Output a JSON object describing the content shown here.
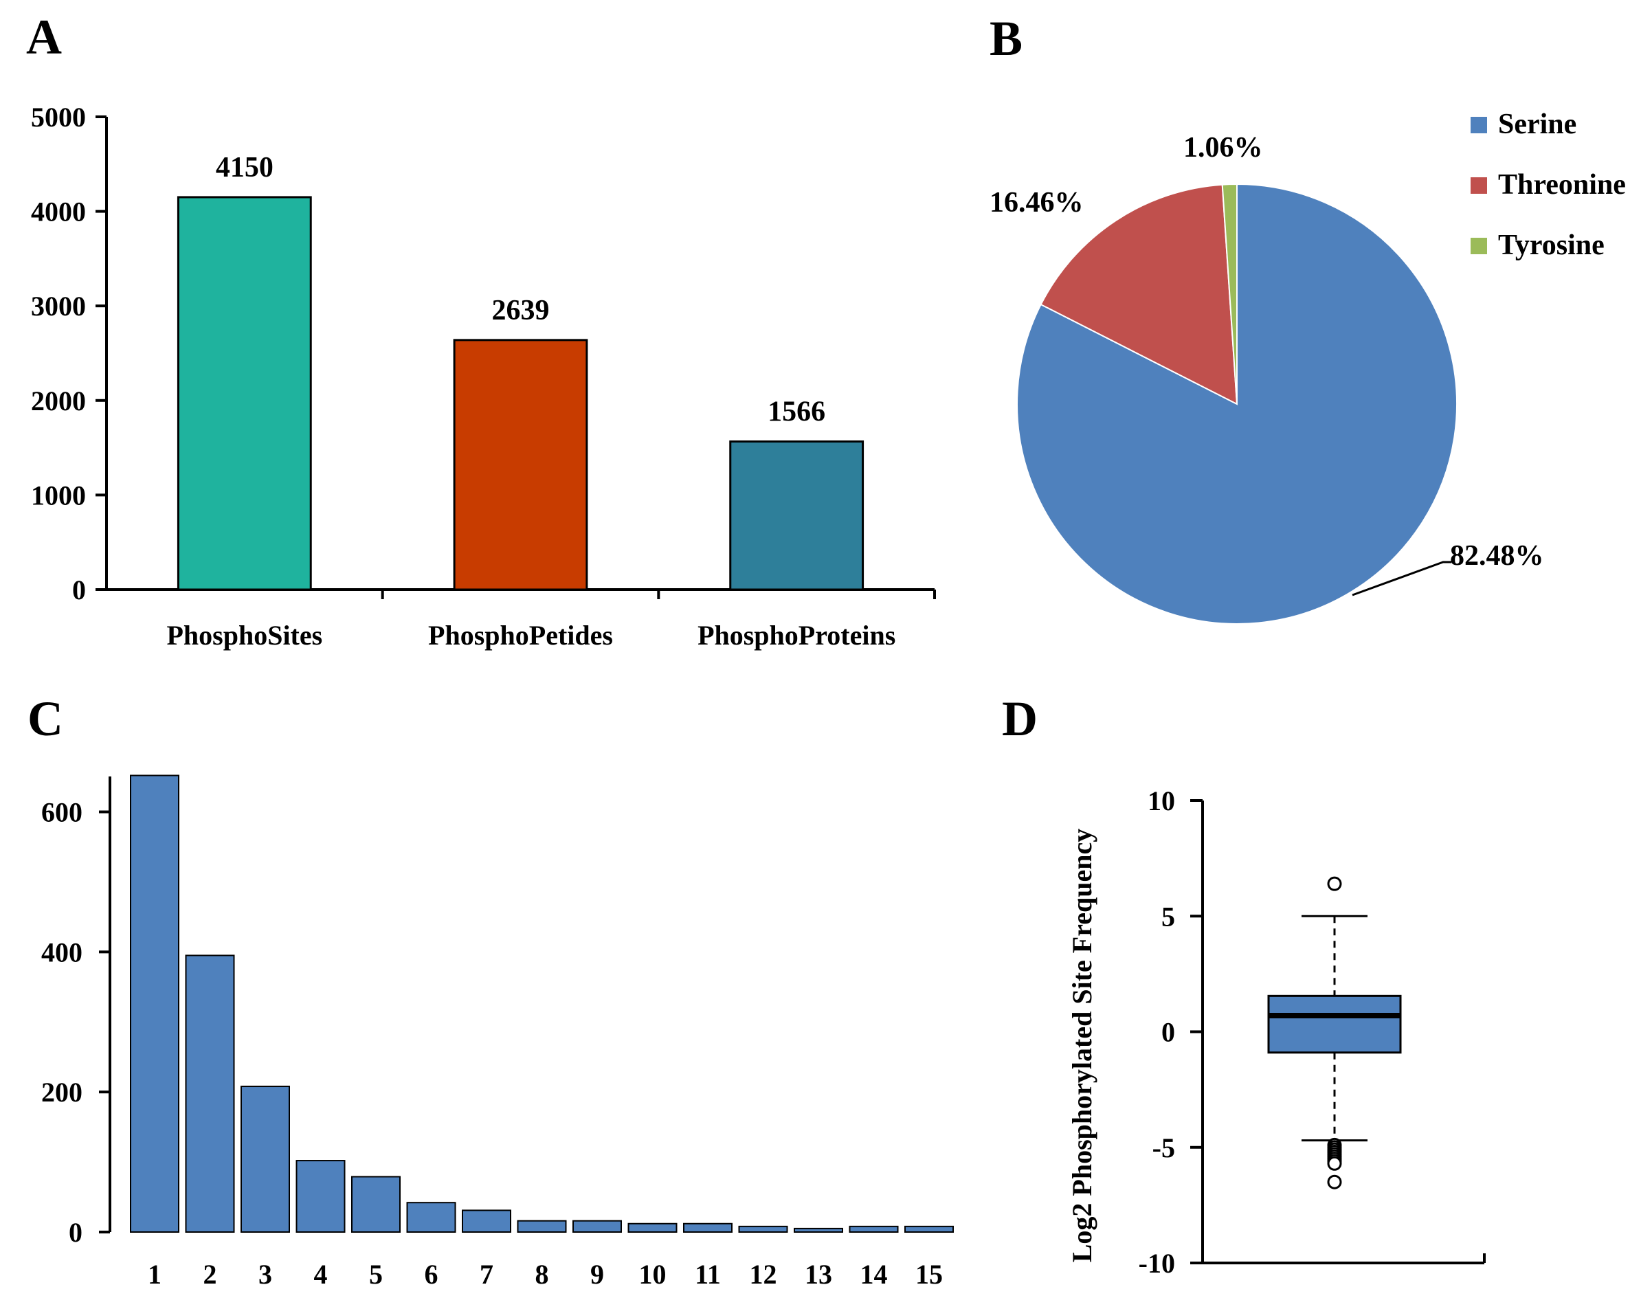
{
  "panels": {
    "a": "A",
    "b": "B",
    "c": "C",
    "d": "D"
  },
  "chart_data": [
    {
      "panel": "A",
      "type": "bar",
      "categories": [
        "PhosphoSites",
        "PhosphoPetides",
        "PhosphoProteins"
      ],
      "values": [
        4150,
        2639,
        1566
      ],
      "value_labels": [
        "4150",
        "2639",
        "1566"
      ],
      "colors": [
        "#1fb39e",
        "#c83c00",
        "#2e7f9a"
      ],
      "ylim": [
        0,
        5000
      ],
      "yticks": [
        0,
        1000,
        2000,
        3000,
        4000,
        5000
      ],
      "title": "",
      "xlabel": "",
      "ylabel": ""
    },
    {
      "panel": "B",
      "type": "pie",
      "labels": [
        "Serine",
        "Threonine",
        "Tyrosine"
      ],
      "values": [
        82.48,
        16.46,
        1.06
      ],
      "value_labels": [
        "82.48%",
        "16.46%",
        "1.06%"
      ],
      "colors": [
        "#4f81bd",
        "#c0504d",
        "#9bbb59"
      ],
      "legend": "top-right",
      "title": ""
    },
    {
      "panel": "C",
      "type": "bar",
      "categories": [
        "1",
        "2",
        "3",
        "4",
        "5",
        "6",
        "7",
        "8",
        "9",
        "10",
        "11",
        "12",
        "13",
        "14",
        "15"
      ],
      "values": [
        652,
        395,
        208,
        102,
        79,
        42,
        31,
        16,
        16,
        12,
        12,
        8,
        5,
        8,
        8
      ],
      "color": "#4f81bd",
      "ylim": [
        0,
        680
      ],
      "yticks": [
        0,
        200,
        400,
        600
      ],
      "title": "",
      "xlabel": "",
      "ylabel": ""
    },
    {
      "panel": "D",
      "type": "box",
      "ylabel": "Log2 Phosphorylated Site Frequency",
      "ylim": [
        -10,
        10
      ],
      "yticks": [
        -10,
        -5,
        0,
        5,
        10
      ],
      "q1": -0.9,
      "median": 0.7,
      "q3": 1.55,
      "whisker_low": -4.7,
      "whisker_high": 5.0,
      "outliers": [
        6.4,
        -4.9,
        -5.0,
        -5.1,
        -5.2,
        -5.3,
        -5.4,
        -5.5,
        -5.6,
        -5.7,
        -6.5
      ],
      "color": "#4f81bd"
    }
  ]
}
